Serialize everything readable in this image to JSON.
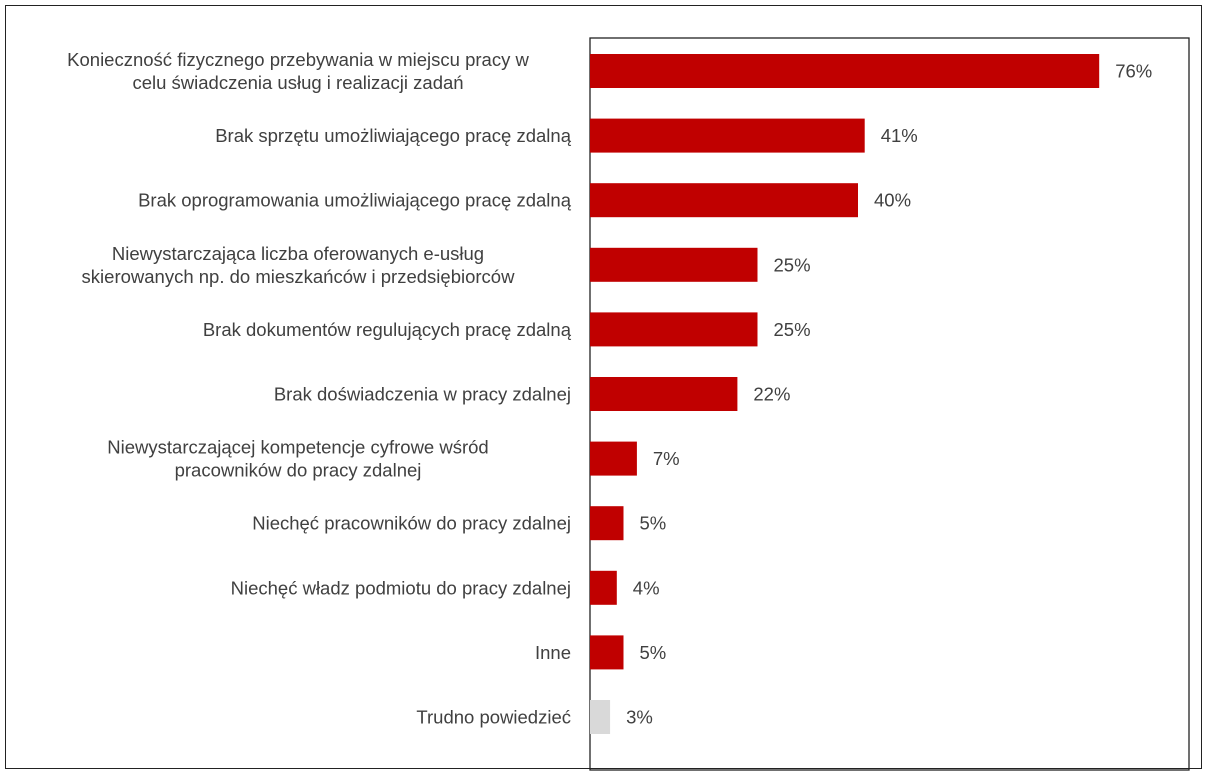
{
  "chart_data": {
    "type": "bar",
    "orientation": "horizontal",
    "title": "",
    "xlabel": "",
    "ylabel": "",
    "xlim": [
      0,
      100
    ],
    "grid": false,
    "legend": "none",
    "value_suffix": "%",
    "categories": [
      [
        "Konieczność fizycznego przebywania w miejscu pracy w",
        "celu świadczenia usług i realizacji zadań"
      ],
      [
        "Brak sprzętu umożliwiającego pracę zdalną"
      ],
      [
        "Brak oprogramowania umożliwiającego pracę zdalną"
      ],
      [
        "Niewystarczająca liczba oferowanych e-usług",
        "skierowanych np. do mieszkańców i przedsiębiorców"
      ],
      [
        "Brak dokumentów regulujących pracę zdalną"
      ],
      [
        "Brak doświadczenia w pracy zdalnej"
      ],
      [
        "Niewystarczającej kompetencje cyfrowe wśród",
        "pracowników do pracy zdalnej"
      ],
      [
        "Niechęć pracowników do pracy zdalnej"
      ],
      [
        "Niechęć władz podmiotu do pracy zdalnej"
      ],
      [
        "Inne"
      ],
      [
        "Trudno powiedzieć"
      ]
    ],
    "values": [
      76,
      41,
      40,
      25,
      25,
      22,
      7,
      5,
      4,
      5,
      3
    ],
    "value_labels": [
      "76%",
      "41%",
      "40%",
      "25%",
      "25%",
      "22%",
      "7%",
      "5%",
      "4%",
      "5%",
      "3%"
    ],
    "colors": [
      "#c00000",
      "#c00000",
      "#c00000",
      "#c00000",
      "#c00000",
      "#c00000",
      "#c00000",
      "#c00000",
      "#c00000",
      "#c00000",
      "#d9d9d9"
    ]
  }
}
